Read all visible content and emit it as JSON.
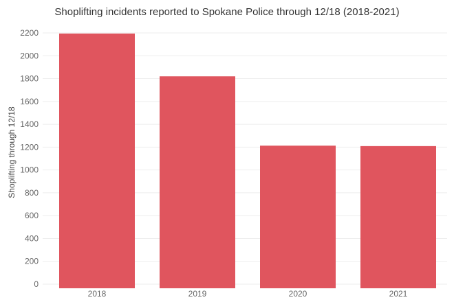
{
  "chart_data": {
    "type": "bar",
    "title": "Shoplifting incidents reported to Spokane Police through 12/18 (2018-2021)",
    "xlabel": "",
    "ylabel": "Shoplifting through 12/18",
    "categories": [
      "2018",
      "2019",
      "2020",
      "2021"
    ],
    "values": [
      2195,
      1820,
      1213,
      1209
    ],
    "ylim": [
      0,
      2200
    ],
    "yticks": [
      0,
      200,
      400,
      600,
      800,
      1000,
      1200,
      1400,
      1600,
      1800,
      2000,
      2200
    ],
    "grid": true,
    "legend": "none",
    "bar_color": "#e0555e"
  }
}
